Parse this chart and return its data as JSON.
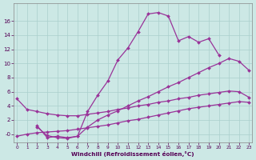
{
  "xlabel": "Windchill (Refroidissement éolien,°C)",
  "bg_color": "#cce8e5",
  "grid_color": "#aacfcc",
  "line_color": "#993399",
  "xlim": [
    -0.3,
    23.3
  ],
  "ylim": [
    -1.2,
    18.5
  ],
  "xticks": [
    0,
    1,
    2,
    3,
    4,
    5,
    6,
    7,
    8,
    9,
    10,
    11,
    12,
    13,
    14,
    15,
    16,
    17,
    18,
    19,
    20,
    21,
    22,
    23
  ],
  "yticks": [
    0,
    2,
    4,
    6,
    8,
    10,
    12,
    14,
    16
  ],
  "ytick_labels": [
    "-0",
    "2",
    "4",
    "6",
    "8",
    "10",
    "12",
    "14",
    "16"
  ],
  "curves": [
    {
      "x": [
        2,
        3,
        4,
        5,
        6,
        7,
        8,
        9,
        10,
        11,
        12,
        13,
        14,
        15,
        16,
        17,
        18,
        19,
        20
      ],
      "y": [
        1.2,
        -0.5,
        -0.3,
        -0.5,
        -0.3,
        3.2,
        5.5,
        7.5,
        10.5,
        12.2,
        14.5,
        17.0,
        17.2,
        16.7,
        13.2,
        13.8,
        13.0,
        13.5,
        11.2
      ]
    },
    {
      "x": [
        0,
        1,
        2,
        3,
        4,
        5,
        6,
        7,
        8,
        9,
        10,
        11,
        12,
        13,
        14,
        15,
        16,
        17,
        18,
        19,
        20,
        21,
        22,
        23
      ],
      "y": [
        5.0,
        3.5,
        3.2,
        2.9,
        2.7,
        2.6,
        2.6,
        2.8,
        3.0,
        3.2,
        3.5,
        3.7,
        4.0,
        4.2,
        4.5,
        4.7,
        5.0,
        5.2,
        5.5,
        5.7,
        5.9,
        6.1,
        6.0,
        5.2
      ]
    },
    {
      "x": [
        0,
        1,
        2,
        3,
        4,
        5,
        6,
        7,
        8,
        9,
        10,
        11,
        12,
        13,
        14,
        15,
        16,
        17,
        18,
        19,
        20,
        21,
        22,
        23
      ],
      "y": [
        -0.3,
        0.0,
        0.2,
        0.3,
        0.4,
        0.5,
        0.7,
        0.9,
        1.1,
        1.3,
        1.6,
        1.9,
        2.1,
        2.4,
        2.7,
        3.0,
        3.3,
        3.6,
        3.8,
        4.0,
        4.2,
        4.4,
        4.6,
        4.5
      ]
    },
    {
      "x": [
        2,
        3,
        4,
        5,
        6,
        7,
        8,
        9,
        10,
        11,
        12,
        13,
        14,
        15,
        16,
        17,
        18,
        19,
        20,
        21,
        22,
        23
      ],
      "y": [
        1.0,
        -0.2,
        -0.5,
        -0.6,
        -0.3,
        1.0,
        2.0,
        2.7,
        3.3,
        4.0,
        4.7,
        5.3,
        6.0,
        6.7,
        7.3,
        8.0,
        8.7,
        9.4,
        10.0,
        10.7,
        10.3,
        9.0
      ]
    }
  ]
}
